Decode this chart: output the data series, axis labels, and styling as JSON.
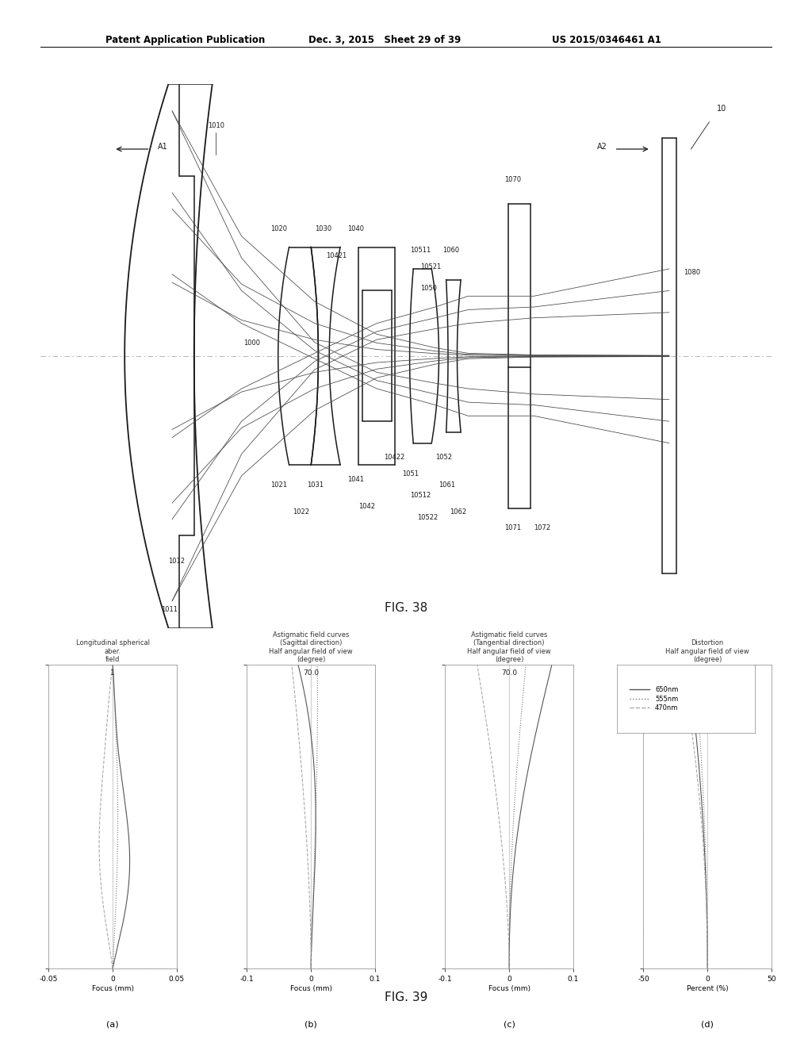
{
  "header_left": "Patent Application Publication",
  "header_mid": "Dec. 3, 2015   Sheet 29 of 39",
  "header_right": "US 2015/0346461 A1",
  "fig38_label": "FIG. 38",
  "fig39_label": "FIG. 39",
  "background_color": "#ffffff",
  "line_color": "#000000",
  "grid_color": "#cccccc",
  "plot_a_title": "Longitudinal spherical\naber.\nfield",
  "plot_b_title": "Astigmatic field curves\n(Sagittal direction)\nHalf angular field of view\n(degree)",
  "plot_c_title": "Astigmatic field curves\n(Tangential direction)\nHalf angular field of view\n(degree)",
  "plot_d_title": "Distortion\nHalf angular field of view\n(degree)",
  "plot_a_xlabel": "Focus (mm)",
  "plot_b_xlabel": "Focus (mm)",
  "plot_c_xlabel": "Focus (mm)",
  "plot_d_xlabel": "Percent (%)",
  "sub_a": "(a)",
  "sub_b": "(b)",
  "sub_c": "(c)",
  "sub_d": "(d)",
  "plot_a_xlim": [
    -0.05,
    0.05
  ],
  "plot_a_xticks": [
    -0.05,
    0,
    0.05
  ],
  "plot_b_xlim": [
    -0.1,
    0.1
  ],
  "plot_b_xticks": [
    -0.1,
    0,
    0.1
  ],
  "plot_c_xlim": [
    -0.1,
    0.1
  ],
  "plot_c_xticks": [
    -0.1,
    0,
    0.1
  ],
  "plot_d_xlim": [
    -50,
    50
  ],
  "plot_d_xticks": [
    -50,
    0,
    50
  ],
  "ylim": [
    0,
    70
  ],
  "yticks": [
    0,
    70
  ],
  "top_tick_label_bcd": "70.0",
  "top_tick_label_a": "1",
  "legend_650": "650nm",
  "legend_555": "555nm",
  "legend_470": "470nm",
  "color_650": "#555555",
  "color_555": "#777777",
  "color_470": "#aaaaaa"
}
